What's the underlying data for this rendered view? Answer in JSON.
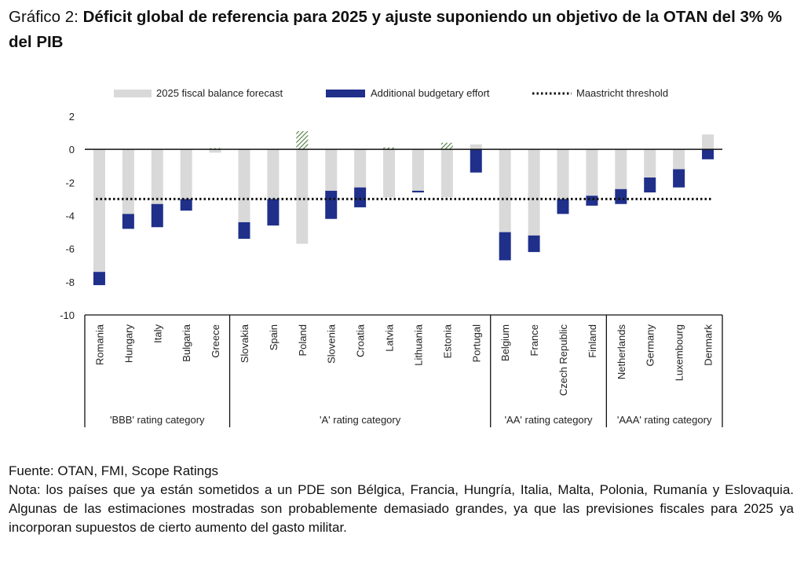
{
  "title": {
    "prefix": "Gráfico 2: ",
    "bold": "Déficit global de referencia para 2025 y ajuste suponiendo un objetivo de la OTAN del 3% % del PIB"
  },
  "footer": {
    "source": "Fuente: OTAN, FMI, Scope Ratings",
    "note": "Nota: los países que ya están sometidos a un PDE son Bélgica, Francia, Hungría, Italia, Malta, Polonia, Rumanía y Eslovaquia. Algunas de las estimaciones mostradas son probablemente demasiado grandes, ya que las previsiones fiscales para 2025 ya incorporan supuestos de cierto aumento del gasto militar."
  },
  "chart_data": {
    "type": "bar",
    "categories": [
      "Romania",
      "Hungary",
      "Italy",
      "Bulgaria",
      "Greece",
      "Slovakia",
      "Spain",
      "Poland",
      "Slovenia",
      "Croatia",
      "Latvia",
      "Lithuania",
      "Estonia",
      "Portugal",
      "Belgium",
      "France",
      "Czech Republic",
      "Finland",
      "Netherlands",
      "Germany",
      "Luxembourg",
      "Denmark"
    ],
    "groups": [
      {
        "label": "'BBB' rating category",
        "count": 5
      },
      {
        "label": "'A' rating category",
        "count": 9
      },
      {
        "label": "'AA' rating category",
        "count": 4
      },
      {
        "label": "'AAA' rating category",
        "count": 4
      }
    ],
    "series": [
      {
        "name": "2025 fiscal balance forecast",
        "color": "#d9d9d9",
        "values": [
          -7.4,
          -3.9,
          -3.3,
          -3.0,
          -0.2,
          -4.4,
          -3.0,
          -5.7,
          -2.5,
          -2.3,
          -2.9,
          -2.5,
          -2.9,
          0.3,
          -5.0,
          -5.2,
          -3.0,
          -2.8,
          -2.4,
          -1.7,
          -1.2,
          0.9
        ]
      },
      {
        "name": "Additional budgetary effort",
        "color": "#1f2f8a",
        "values": [
          -0.8,
          -0.9,
          -1.4,
          -0.7,
          0,
          -1.0,
          -1.6,
          0,
          -1.7,
          -1.2,
          0,
          -0.1,
          0,
          -1.4,
          -1.7,
          -1.0,
          -0.9,
          -0.6,
          -0.9,
          -0.9,
          -1.1,
          -0.6
        ]
      },
      {
        "name": "Maastricht threshold",
        "value": -3,
        "style": "dotted",
        "color": "#111111"
      }
    ],
    "surplus_hatch": [
      0,
      0,
      0,
      0,
      0.08,
      0,
      0,
      1.1,
      0,
      0,
      0.12,
      0,
      0.4,
      0,
      0,
      0,
      0,
      0,
      0,
      0,
      0,
      0
    ],
    "hatch_color": "#4a7a3c",
    "ylim": [
      -10,
      2
    ],
    "yticks": [
      "2",
      "0",
      "-2",
      "-4",
      "-6",
      "-8",
      "-10"
    ],
    "legend_position": "top",
    "grid": false
  }
}
